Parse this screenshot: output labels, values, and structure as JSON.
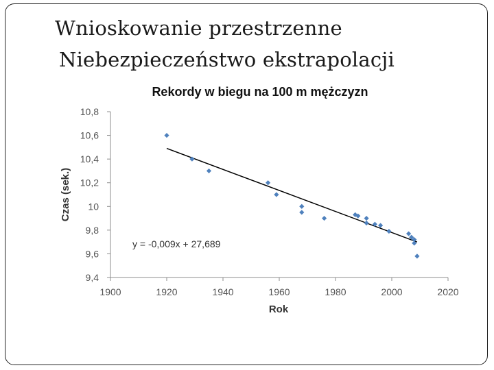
{
  "slide": {
    "title_line1": "Wnioskowanie przestrzenne",
    "title_line2": "Niebezpieczeństwo ekstrapolacji"
  },
  "chart_data": {
    "type": "scatter",
    "title": "Rekordy w biegu na 100 m mężczyzn",
    "xlabel": "Rok",
    "ylabel": "Czas (sek.)",
    "xlim": [
      1900,
      2020
    ],
    "ylim": [
      9.4,
      10.8
    ],
    "x_ticks": [
      1900,
      1920,
      1940,
      1960,
      1980,
      2000,
      2020
    ],
    "x_tick_labels": [
      "1900",
      "1920",
      "1940",
      "1960",
      "1980",
      "2000",
      "2020"
    ],
    "y_ticks": [
      9.4,
      9.6,
      9.8,
      10.0,
      10.2,
      10.4,
      10.6,
      10.8
    ],
    "y_tick_labels": [
      "9,4",
      "9,6",
      "9,8",
      "10",
      "10,2",
      "10,4",
      "10,6",
      "10,8"
    ],
    "grid": false,
    "point_color": "#4f81bd",
    "line_color": "#000000",
    "points": [
      {
        "x": 1920,
        "y": 10.6
      },
      {
        "x": 1929,
        "y": 10.4
      },
      {
        "x": 1935,
        "y": 10.3
      },
      {
        "x": 1956,
        "y": 10.2
      },
      {
        "x": 1959,
        "y": 10.1
      },
      {
        "x": 1968,
        "y": 10.0
      },
      {
        "x": 1968,
        "y": 9.95
      },
      {
        "x": 1976,
        "y": 9.9
      },
      {
        "x": 1987,
        "y": 9.93
      },
      {
        "x": 1988,
        "y": 9.92
      },
      {
        "x": 1991,
        "y": 9.9
      },
      {
        "x": 1991,
        "y": 9.86
      },
      {
        "x": 1994,
        "y": 9.85
      },
      {
        "x": 1996,
        "y": 9.84
      },
      {
        "x": 1999,
        "y": 9.79
      },
      {
        "x": 2006,
        "y": 9.77
      },
      {
        "x": 2007,
        "y": 9.74
      },
      {
        "x": 2008,
        "y": 9.72
      },
      {
        "x": 2008,
        "y": 9.69
      },
      {
        "x": 2009,
        "y": 9.58
      }
    ],
    "trendline": {
      "equation_label": "y = -0,009x + 27,689",
      "slope": -0.009,
      "intercept": 27.689,
      "x_range": [
        1920,
        2009
      ]
    }
  }
}
